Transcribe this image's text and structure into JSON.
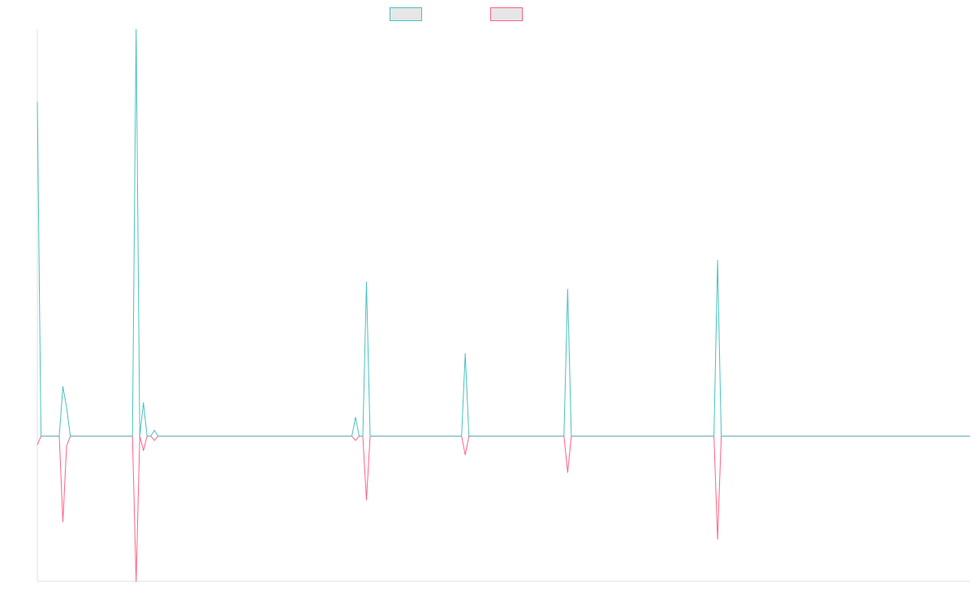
{
  "chart_data": {
    "type": "line",
    "title": "",
    "xlabel": "",
    "ylabel": "",
    "grid": false,
    "legend_position": "top-center",
    "x_count": 256,
    "ylim": [
      -1.0,
      2.8
    ],
    "series": [
      {
        "key": "positive",
        "color": "#4bc0c0",
        "points": [
          [
            0,
            2.3
          ],
          [
            1,
            0
          ],
          [
            6,
            0
          ],
          [
            7,
            0.34
          ],
          [
            8,
            0.2
          ],
          [
            9,
            0
          ],
          [
            26,
            0
          ],
          [
            27,
            2.8
          ],
          [
            28,
            0
          ],
          [
            29,
            0.23
          ],
          [
            30,
            0
          ],
          [
            31,
            0
          ],
          [
            32,
            0.04
          ],
          [
            33,
            0
          ],
          [
            86,
            0
          ],
          [
            87,
            0.13
          ],
          [
            88,
            0
          ],
          [
            89,
            0
          ],
          [
            90,
            1.06
          ],
          [
            91,
            0
          ],
          [
            116,
            0
          ],
          [
            117,
            0.57
          ],
          [
            118,
            0
          ],
          [
            144,
            0
          ],
          [
            145,
            1.01
          ],
          [
            146,
            0
          ],
          [
            185,
            0
          ],
          [
            186,
            1.21
          ],
          [
            187,
            0
          ],
          [
            255,
            0
          ]
        ]
      },
      {
        "key": "negative",
        "color": "#ff6384",
        "points": [
          [
            0,
            -0.06
          ],
          [
            1,
            0
          ],
          [
            6,
            0
          ],
          [
            7,
            -0.59
          ],
          [
            8,
            -0.07
          ],
          [
            9,
            0
          ],
          [
            26,
            0
          ],
          [
            27,
            -1.0
          ],
          [
            28,
            0
          ],
          [
            29,
            -0.1
          ],
          [
            30,
            0
          ],
          [
            31,
            0
          ],
          [
            32,
            -0.03
          ],
          [
            33,
            0
          ],
          [
            86,
            0
          ],
          [
            87,
            -0.03
          ],
          [
            88,
            0
          ],
          [
            89,
            0
          ],
          [
            90,
            -0.44
          ],
          [
            91,
            0
          ],
          [
            116,
            0
          ],
          [
            117,
            -0.13
          ],
          [
            118,
            0
          ],
          [
            144,
            0
          ],
          [
            145,
            -0.25
          ],
          [
            146,
            0
          ],
          [
            185,
            0
          ],
          [
            186,
            -0.71
          ],
          [
            187,
            0
          ],
          [
            255,
            0
          ]
        ]
      }
    ]
  }
}
